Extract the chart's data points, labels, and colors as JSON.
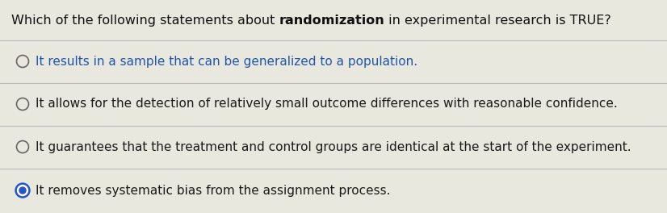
{
  "title_parts": [
    {
      "text": "Which of the following statements about ",
      "bold": false
    },
    {
      "text": "randomization",
      "bold": true
    },
    {
      "text": " in experimental research is TRUE?",
      "bold": false
    }
  ],
  "options": [
    {
      "text": "It results in a sample that can be generalized to a population.",
      "selected": false,
      "text_color": "#2255aa"
    },
    {
      "text": "It allows for the detection of relatively small outcome differences with reasonable confidence.",
      "selected": false,
      "text_color": "#1a1a1a"
    },
    {
      "text": "It guarantees that the treatment and control groups are identical at the start of the experiment.",
      "selected": false,
      "text_color": "#1a1a1a"
    },
    {
      "text": "It removes systematic bias from the assignment process.",
      "selected": true,
      "text_color": "#1a1a1a"
    }
  ],
  "background_color": "#e8e8de",
  "line_color": "#bbbbbb",
  "circle_edge_color": "#666666",
  "selected_outer_color": "#2255cc",
  "selected_inner_color": "#ffffff",
  "selected_ring_color": "#2255cc",
  "title_color": "#111111",
  "font_size_title": 11.5,
  "font_size_options": 11.0,
  "fig_width": 8.26,
  "fig_height": 2.64,
  "dpi": 100
}
